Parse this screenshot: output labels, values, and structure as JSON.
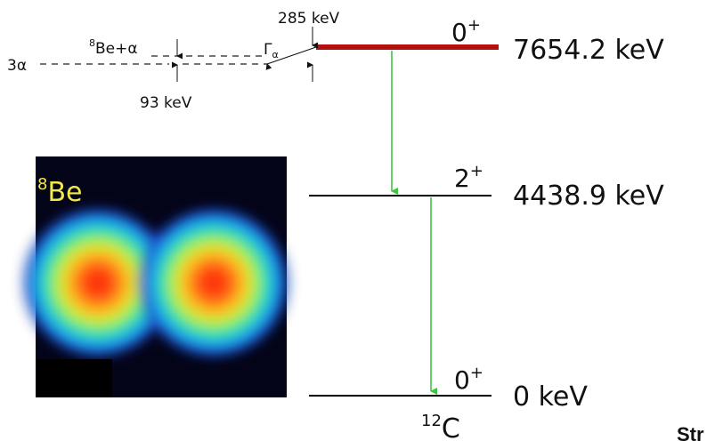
{
  "levels": {
    "hoyle": {
      "energy": "7654.2 keV",
      "spin": "0",
      "parity": "+"
    },
    "first_excited": {
      "energy": "4438.9 keV",
      "spin": "2",
      "parity": "+"
    },
    "ground": {
      "energy": "0 keV",
      "spin": "0",
      "parity": "+"
    }
  },
  "nucleus": {
    "mass_number": "12",
    "symbol": "C"
  },
  "threshold": {
    "three_alpha_label": "3α",
    "be_alpha_mass": "8",
    "be_alpha_label": "Be+α",
    "width_label": "93 keV",
    "gap_label": "285 keV",
    "gamma_symbol": "Γ",
    "gamma_subscript": "α"
  },
  "inset": {
    "mass_number": "8",
    "symbol": "Be"
  },
  "cut_off_text": "Str",
  "colors": {
    "hoyle_level": "#b30f0f",
    "gamma_arrows": "#3ec43e",
    "level_lines": "#000000"
  }
}
